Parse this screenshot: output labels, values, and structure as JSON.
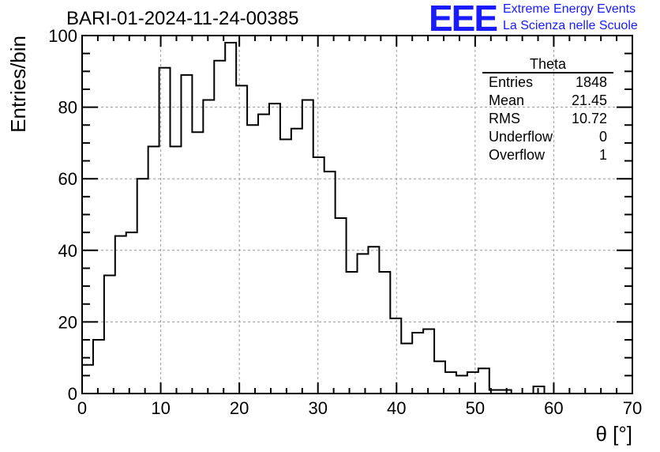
{
  "title": "BARI-01-2024-11-24-00385",
  "logo": {
    "mark": "EEE",
    "line1": "Extreme Energy Events",
    "line2": "La Scienza nelle Scuole"
  },
  "stats_box": {
    "name": "Theta",
    "rows": [
      {
        "label": "Entries",
        "value": "1848"
      },
      {
        "label": "Mean",
        "value": "21.45"
      },
      {
        "label": "RMS",
        "value": "10.72"
      },
      {
        "label": "Underflow",
        "value": "0"
      },
      {
        "label": "Overflow",
        "value": "1"
      }
    ]
  },
  "chart_data": {
    "type": "bar",
    "histogram": true,
    "bin_width": 1.4,
    "xlim": [
      0,
      70
    ],
    "ylim": [
      0,
      100
    ],
    "xlabel": "θ [°]",
    "ylabel": "Entries/bin",
    "x_ticks": [
      0,
      10,
      20,
      30,
      40,
      50,
      60,
      70
    ],
    "y_ticks": [
      0,
      20,
      40,
      60,
      80,
      100
    ],
    "grid": true,
    "line_color": "#000000",
    "values": [
      8,
      15,
      33,
      44,
      45,
      60,
      69,
      91,
      69,
      89,
      73,
      82,
      93,
      98,
      86,
      75,
      78,
      81,
      71,
      74,
      82,
      66,
      62,
      49,
      34,
      39,
      41,
      34,
      21,
      14,
      17,
      18,
      9,
      6,
      5,
      6,
      7,
      1,
      1,
      0,
      0,
      2,
      0,
      0,
      0,
      0,
      0,
      0,
      0,
      0
    ]
  }
}
